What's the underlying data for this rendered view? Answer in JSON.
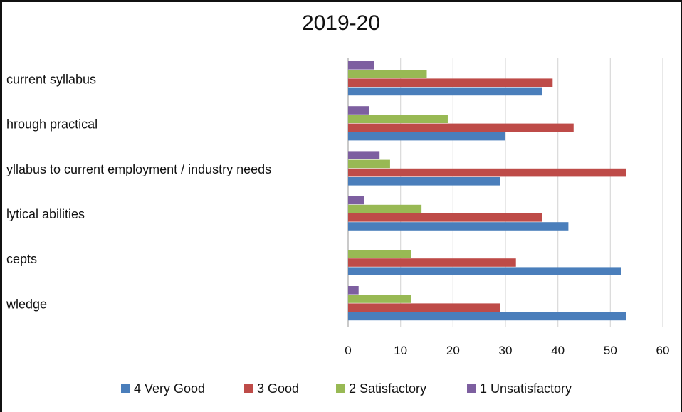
{
  "chart_data": {
    "type": "bar",
    "orientation": "horizontal",
    "title": "2019-20",
    "categories": [
      "current syllabus",
      "hrough practical",
      "yllabus to current employment / industry needs",
      "lytical abilities",
      "cepts",
      "wledge"
    ],
    "series": [
      {
        "name": "4 Very Good",
        "color": "#4a7ebb",
        "values": [
          37,
          30,
          29,
          42,
          52,
          53
        ]
      },
      {
        "name": "3 Good",
        "color": "#be4b48",
        "values": [
          39,
          43,
          53,
          37,
          32,
          29
        ]
      },
      {
        "name": "2 Satisfactory",
        "color": "#98b954",
        "values": [
          15,
          19,
          8,
          14,
          12,
          12
        ]
      },
      {
        "name": "1 Unsatisfactory",
        "color": "#7d5fa0",
        "values": [
          5,
          4,
          6,
          3,
          0,
          2
        ]
      }
    ],
    "xlim": [
      0,
      60
    ],
    "xticks": [
      0,
      10,
      20,
      30,
      40,
      50,
      60
    ],
    "grid": true,
    "legend": "bottom"
  }
}
